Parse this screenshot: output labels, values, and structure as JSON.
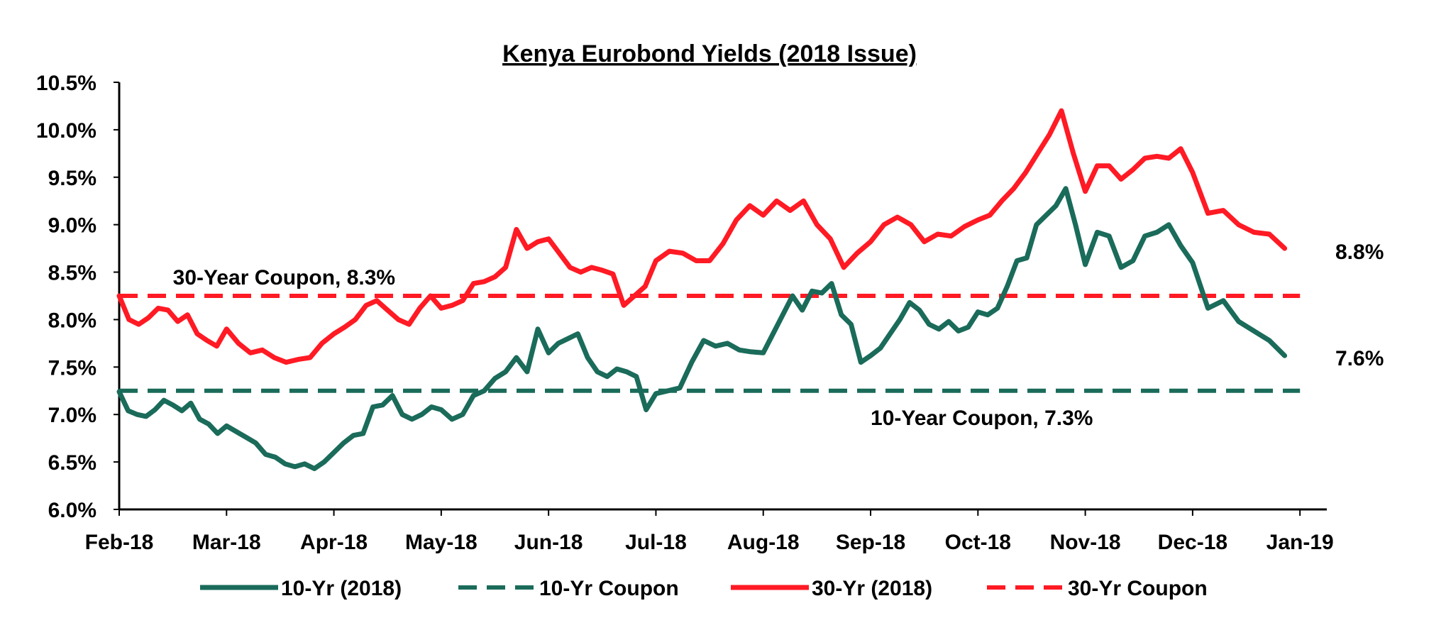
{
  "chart_data": {
    "type": "line",
    "title": "Kenya Eurobond Yields (2018 Issue)",
    "xlabel": "",
    "ylabel": "",
    "ylim": [
      6.0,
      10.5
    ],
    "yticks": [
      "6.0%",
      "6.5%",
      "7.0%",
      "7.5%",
      "8.0%",
      "8.5%",
      "9.0%",
      "9.5%",
      "10.0%",
      "10.5%"
    ],
    "xticks": [
      "Feb-18",
      "Mar-18",
      "Apr-18",
      "May-18",
      "Jun-18",
      "Jul-18",
      "Aug-18",
      "Sep-18",
      "Oct-18",
      "Nov-18",
      "Dec-18",
      "Jan-19"
    ],
    "x_domain": [
      "Feb-18",
      "Jan-19 + 0.25 mo"
    ],
    "grid": false,
    "legend_position": "bottom",
    "colors": {
      "ten_year": "#1a6b5a",
      "thirty_year": "#ff1a24",
      "axis": "#000000"
    },
    "series": [
      {
        "key": "ten_year",
        "name": "10-Yr (2018)",
        "style": "solid",
        "points": [
          [
            "Feb-18",
            7.24
          ],
          [
            "Feb-18",
            7.04
          ],
          [
            "Feb-18",
            7.0
          ],
          [
            "Feb-18",
            6.98
          ],
          [
            "Feb-18",
            7.05
          ],
          [
            "Feb-18",
            7.15
          ],
          [
            "Feb-18",
            7.1
          ],
          [
            "Feb-18",
            7.04
          ],
          [
            "Feb-18",
            7.12
          ],
          [
            "Feb-18",
            6.95
          ],
          [
            "Feb-18",
            6.9
          ],
          [
            "Feb-18",
            6.8
          ],
          [
            "Mar-18",
            6.88
          ],
          [
            "Mar-18",
            6.82
          ],
          [
            "Mar-18",
            6.76
          ],
          [
            "Mar-18",
            6.7
          ],
          [
            "Mar-18",
            6.58
          ],
          [
            "Mar-18",
            6.55
          ],
          [
            "Mar-18",
            6.48
          ],
          [
            "Mar-18",
            6.45
          ],
          [
            "Mar-18",
            6.48
          ],
          [
            "Mar-18",
            6.43
          ],
          [
            "Mar-18",
            6.5
          ],
          [
            "Apr-18",
            6.6
          ],
          [
            "Apr-18",
            6.7
          ],
          [
            "Apr-18",
            6.78
          ],
          [
            "Apr-18",
            6.8
          ],
          [
            "Apr-18",
            7.08
          ],
          [
            "Apr-18",
            7.1
          ],
          [
            "Apr-18",
            7.2
          ],
          [
            "Apr-18",
            7.0
          ],
          [
            "Apr-18",
            6.95
          ],
          [
            "Apr-18",
            7.0
          ],
          [
            "Apr-18",
            7.08
          ],
          [
            "May-18",
            7.05
          ],
          [
            "May-18",
            6.95
          ],
          [
            "May-18",
            7.0
          ],
          [
            "May-18",
            7.2
          ],
          [
            "May-18",
            7.25
          ],
          [
            "May-18",
            7.38
          ],
          [
            "May-18",
            7.45
          ],
          [
            "May-18",
            7.6
          ],
          [
            "May-18",
            7.45
          ],
          [
            "May-18",
            7.9
          ],
          [
            "Jun-18",
            7.65
          ],
          [
            "Jun-18",
            7.75
          ],
          [
            "Jun-18",
            7.8
          ],
          [
            "Jun-18",
            7.85
          ],
          [
            "Jun-18",
            7.6
          ],
          [
            "Jun-18",
            7.45
          ],
          [
            "Jun-18",
            7.4
          ],
          [
            "Jun-18",
            7.48
          ],
          [
            "Jun-18",
            7.45
          ],
          [
            "Jun-18",
            7.4
          ],
          [
            "Jun-18",
            7.05
          ],
          [
            "Jul-18",
            7.22
          ],
          [
            "Jul-18",
            7.25
          ],
          [
            "Jul-18",
            7.28
          ],
          [
            "Jul-18",
            7.55
          ],
          [
            "Jul-18",
            7.78
          ],
          [
            "Jul-18",
            7.72
          ],
          [
            "Jul-18",
            7.75
          ],
          [
            "Jul-18",
            7.68
          ],
          [
            "Jul-18",
            7.66
          ],
          [
            "Aug-18",
            7.65
          ],
          [
            "Aug-18",
            7.85
          ],
          [
            "Aug-18",
            8.05
          ],
          [
            "Aug-18",
            8.25
          ],
          [
            "Aug-18",
            8.1
          ],
          [
            "Aug-18",
            8.3
          ],
          [
            "Aug-18",
            8.28
          ],
          [
            "Aug-18",
            8.38
          ],
          [
            "Aug-18",
            8.05
          ],
          [
            "Aug-18",
            7.95
          ],
          [
            "Aug-18",
            7.55
          ],
          [
            "Sep-18",
            7.62
          ],
          [
            "Sep-18",
            7.7
          ],
          [
            "Sep-18",
            7.85
          ],
          [
            "Sep-18",
            8.0
          ],
          [
            "Sep-18",
            8.18
          ],
          [
            "Sep-18",
            8.1
          ],
          [
            "Sep-18",
            7.95
          ],
          [
            "Sep-18",
            7.9
          ],
          [
            "Sep-18",
            7.98
          ],
          [
            "Sep-18",
            7.88
          ],
          [
            "Sep-18",
            7.92
          ],
          [
            "Oct-18",
            8.08
          ],
          [
            "Oct-18",
            8.05
          ],
          [
            "Oct-18",
            8.12
          ],
          [
            "Oct-18",
            8.35
          ],
          [
            "Oct-18",
            8.62
          ],
          [
            "Oct-18",
            8.65
          ],
          [
            "Oct-18",
            9.0
          ],
          [
            "Oct-18",
            9.1
          ],
          [
            "Oct-18",
            9.2
          ],
          [
            "Oct-18",
            9.38
          ],
          [
            "Oct-18",
            9.0
          ],
          [
            "Nov-18",
            8.58
          ],
          [
            "Nov-18",
            8.92
          ],
          [
            "Nov-18",
            8.88
          ],
          [
            "Nov-18",
            8.55
          ],
          [
            "Nov-18",
            8.62
          ],
          [
            "Nov-18",
            8.88
          ],
          [
            "Nov-18",
            8.92
          ],
          [
            "Nov-18",
            9.0
          ],
          [
            "Nov-18",
            8.78
          ],
          [
            "Dec-18",
            8.6
          ],
          [
            "Dec-18",
            8.12
          ],
          [
            "Dec-18",
            8.2
          ],
          [
            "Dec-18",
            7.98
          ],
          [
            "Dec-18",
            7.88
          ],
          [
            "Dec-18",
            7.78
          ],
          [
            "Dec-18",
            7.62
          ]
        ]
      },
      {
        "key": "ten_year_coupon",
        "name": "10-Yr Coupon",
        "style": "dashed",
        "points": [
          [
            "Feb-18",
            7.25
          ],
          [
            "Jan-19",
            7.25
          ]
        ]
      },
      {
        "key": "thirty_year",
        "name": "30-Yr (2018)",
        "style": "solid",
        "points": [
          [
            "Feb-18",
            8.25
          ],
          [
            "Feb-18",
            8.0
          ],
          [
            "Feb-18",
            7.95
          ],
          [
            "Feb-18",
            8.02
          ],
          [
            "Feb-18",
            8.12
          ],
          [
            "Feb-18",
            8.1
          ],
          [
            "Feb-18",
            7.98
          ],
          [
            "Feb-18",
            8.05
          ],
          [
            "Feb-18",
            7.85
          ],
          [
            "Feb-18",
            7.78
          ],
          [
            "Feb-18",
            7.72
          ],
          [
            "Mar-18",
            7.9
          ],
          [
            "Mar-18",
            7.75
          ],
          [
            "Mar-18",
            7.65
          ],
          [
            "Mar-18",
            7.68
          ],
          [
            "Mar-18",
            7.6
          ],
          [
            "Mar-18",
            7.55
          ],
          [
            "Mar-18",
            7.58
          ],
          [
            "Mar-18",
            7.6
          ],
          [
            "Mar-18",
            7.75
          ],
          [
            "Apr-18",
            7.85
          ],
          [
            "Apr-18",
            7.92
          ],
          [
            "Apr-18",
            8.0
          ],
          [
            "Apr-18",
            8.15
          ],
          [
            "Apr-18",
            8.2
          ],
          [
            "Apr-18",
            8.1
          ],
          [
            "Apr-18",
            8.0
          ],
          [
            "Apr-18",
            7.95
          ],
          [
            "Apr-18",
            8.12
          ],
          [
            "Apr-18",
            8.25
          ],
          [
            "May-18",
            8.12
          ],
          [
            "May-18",
            8.15
          ],
          [
            "May-18",
            8.2
          ],
          [
            "May-18",
            8.38
          ],
          [
            "May-18",
            8.4
          ],
          [
            "May-18",
            8.45
          ],
          [
            "May-18",
            8.55
          ],
          [
            "May-18",
            8.95
          ],
          [
            "May-18",
            8.75
          ],
          [
            "May-18",
            8.82
          ],
          [
            "Jun-18",
            8.85
          ],
          [
            "Jun-18",
            8.7
          ],
          [
            "Jun-18",
            8.55
          ],
          [
            "Jun-18",
            8.5
          ],
          [
            "Jun-18",
            8.55
          ],
          [
            "Jun-18",
            8.52
          ],
          [
            "Jun-18",
            8.48
          ],
          [
            "Jun-18",
            8.15
          ],
          [
            "Jun-18",
            8.25
          ],
          [
            "Jun-18",
            8.35
          ],
          [
            "Jul-18",
            8.62
          ],
          [
            "Jul-18",
            8.72
          ],
          [
            "Jul-18",
            8.7
          ],
          [
            "Jul-18",
            8.62
          ],
          [
            "Jul-18",
            8.62
          ],
          [
            "Jul-18",
            8.8
          ],
          [
            "Jul-18",
            9.05
          ],
          [
            "Jul-18",
            9.2
          ],
          [
            "Aug-18",
            9.1
          ],
          [
            "Aug-18",
            9.25
          ],
          [
            "Aug-18",
            9.15
          ],
          [
            "Aug-18",
            9.25
          ],
          [
            "Aug-18",
            9.0
          ],
          [
            "Aug-18",
            8.85
          ],
          [
            "Aug-18",
            8.55
          ],
          [
            "Aug-18",
            8.7
          ],
          [
            "Sep-18",
            8.82
          ],
          [
            "Sep-18",
            9.0
          ],
          [
            "Sep-18",
            9.08
          ],
          [
            "Sep-18",
            9.0
          ],
          [
            "Sep-18",
            8.82
          ],
          [
            "Sep-18",
            8.9
          ],
          [
            "Sep-18",
            8.88
          ],
          [
            "Sep-18",
            8.98
          ],
          [
            "Oct-18",
            9.05
          ],
          [
            "Oct-18",
            9.1
          ],
          [
            "Oct-18",
            9.25
          ],
          [
            "Oct-18",
            9.38
          ],
          [
            "Oct-18",
            9.55
          ],
          [
            "Oct-18",
            9.75
          ],
          [
            "Oct-18",
            9.95
          ],
          [
            "Oct-18",
            10.2
          ],
          [
            "Oct-18",
            9.75
          ],
          [
            "Nov-18",
            9.35
          ],
          [
            "Nov-18",
            9.62
          ],
          [
            "Nov-18",
            9.62
          ],
          [
            "Nov-18",
            9.48
          ],
          [
            "Nov-18",
            9.58
          ],
          [
            "Nov-18",
            9.7
          ],
          [
            "Nov-18",
            9.72
          ],
          [
            "Nov-18",
            9.7
          ],
          [
            "Nov-18",
            9.8
          ],
          [
            "Dec-18",
            9.55
          ],
          [
            "Dec-18",
            9.12
          ],
          [
            "Dec-18",
            9.15
          ],
          [
            "Dec-18",
            9.0
          ],
          [
            "Dec-18",
            8.92
          ],
          [
            "Dec-18",
            8.9
          ],
          [
            "Dec-18",
            8.75
          ]
        ]
      },
      {
        "key": "thirty_year_coupon",
        "name": "30-Yr Coupon",
        "style": "dashed",
        "points": [
          [
            "Feb-18",
            8.25
          ],
          [
            "Jan-19",
            8.25
          ]
        ]
      }
    ],
    "annotations": [
      {
        "key": "thirty_coupon_label",
        "text": "30-Year Coupon, 8.3%",
        "x": "Feb-18 + 0.5 mo",
        "y": 8.45
      },
      {
        "key": "ten_coupon_label",
        "text": "10-Year Coupon, 7.3%",
        "x": "Sep-18",
        "y": 6.97
      },
      {
        "key": "thirty_end_label",
        "text": "8.8%",
        "x": "Jan-19 + 0.25 mo",
        "y": 8.72
      },
      {
        "key": "ten_end_label",
        "text": "7.6%",
        "x": "Jan-19 + 0.25 mo",
        "y": 7.6
      }
    ]
  }
}
